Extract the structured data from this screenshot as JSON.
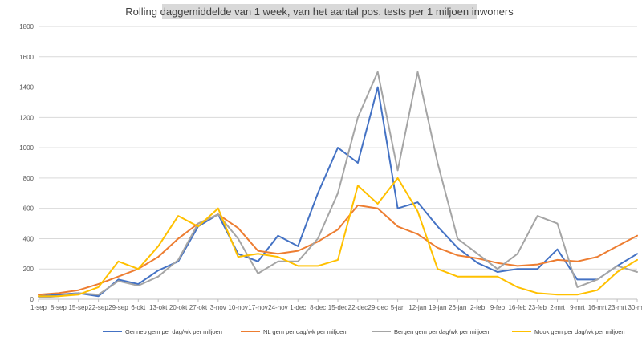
{
  "chart_data": {
    "type": "line",
    "title": "Rolling daggemiddelde van 1 week, van het aantal pos. tests per 1 miljoen inwoners",
    "xlabel": "",
    "ylabel": "",
    "ylim": [
      0,
      1800
    ],
    "yticks": [
      0,
      200,
      400,
      600,
      800,
      1000,
      1200,
      1400,
      1600,
      1800
    ],
    "grid": true,
    "legend_position": "bottom",
    "x_tick_labels": [
      "1-sep",
      "8-sep",
      "15-sep",
      "22-sep",
      "29-sep",
      "6-okt",
      "13-okt",
      "20-okt",
      "27-okt",
      "3-nov",
      "10-nov",
      "17-nov",
      "24-nov",
      "1-dec",
      "8-dec",
      "15-dec",
      "22-dec",
      "29-dec",
      "5-jan",
      "12-jan",
      "19-jan",
      "26-jan",
      "2-feb",
      "9-feb",
      "16-feb",
      "23-feb",
      "2-mrt",
      "9-mrt",
      "16-mrt",
      "23-mrt",
      "30-mrt"
    ],
    "x": [
      "1-sep",
      "8-sep",
      "15-sep",
      "22-sep",
      "29-sep",
      "6-okt",
      "13-okt",
      "20-okt",
      "27-okt",
      "3-nov",
      "10-nov",
      "17-nov",
      "24-nov",
      "1-dec",
      "8-dec",
      "15-dec",
      "22-dec",
      "29-dec",
      "5-jan",
      "12-jan",
      "19-jan",
      "26-jan",
      "2-feb",
      "9-feb",
      "16-feb",
      "23-feb",
      "2-mrt",
      "9-mrt",
      "16-mrt",
      "23-mrt",
      "30-mrt"
    ],
    "series": [
      {
        "name": "Gennep gem per dag/wk per miljoen",
        "color": "#4472c4",
        "values": [
          20,
          30,
          40,
          20,
          130,
          100,
          190,
          250,
          480,
          560,
          300,
          250,
          420,
          350,
          700,
          1000,
          900,
          1400,
          600,
          640,
          480,
          340,
          240,
          180,
          200,
          200,
          330,
          130,
          130,
          220,
          300
        ]
      },
      {
        "name": "NL gem per dag/wk per miljoen",
        "color": "#ed7d31",
        "values": [
          30,
          40,
          60,
          100,
          150,
          200,
          280,
          400,
          500,
          560,
          470,
          320,
          300,
          320,
          380,
          460,
          620,
          600,
          480,
          430,
          340,
          290,
          270,
          240,
          220,
          230,
          260,
          250,
          280,
          350,
          420
        ]
      },
      {
        "name": "Bergen gem per dag/wk per miljoen",
        "color": "#a5a5a5",
        "values": [
          10,
          20,
          40,
          30,
          120,
          90,
          150,
          260,
          500,
          560,
          400,
          170,
          250,
          250,
          400,
          700,
          1200,
          1500,
          850,
          1500,
          900,
          400,
          300,
          200,
          300,
          550,
          500,
          80,
          130,
          220,
          180
        ]
      },
      {
        "name": "Mook gem per dag/wk per miljoen",
        "color": "#ffc000",
        "values": [
          20,
          20,
          30,
          80,
          250,
          200,
          350,
          550,
          480,
          600,
          280,
          300,
          280,
          220,
          220,
          260,
          750,
          630,
          800,
          580,
          200,
          150,
          150,
          150,
          80,
          40,
          30,
          30,
          60,
          180,
          260
        ]
      }
    ]
  }
}
